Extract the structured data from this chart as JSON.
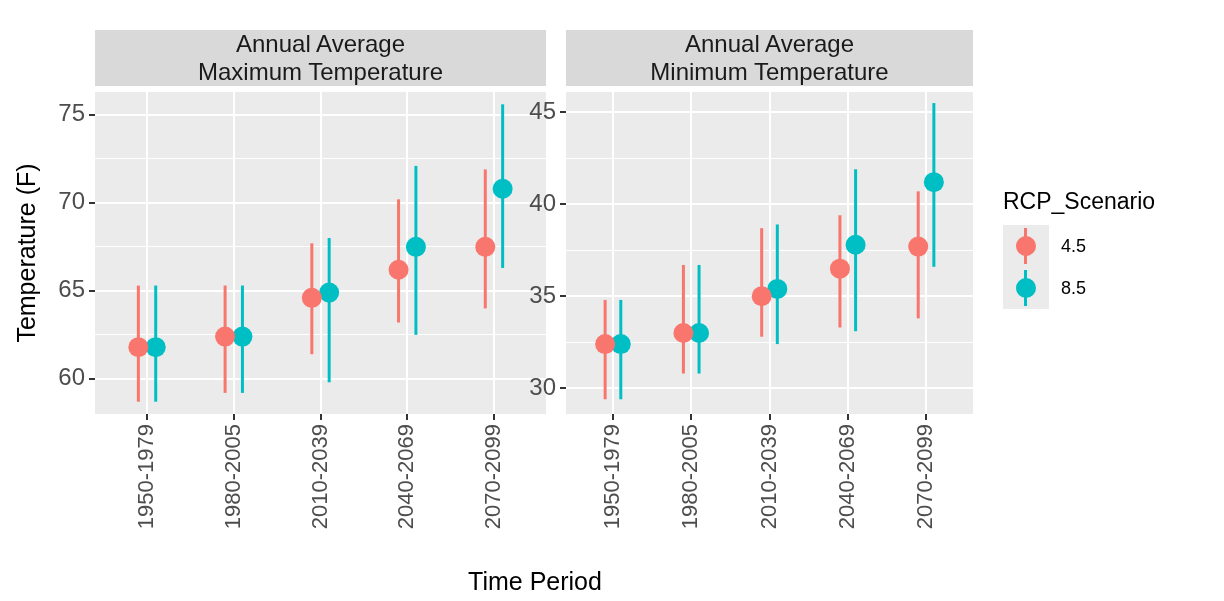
{
  "chart_data": [
    {
      "type": "scatter",
      "title": "Annual Average\nMaximum Temperature",
      "xlabel": "Time Period",
      "ylabel": "Temperature (F)",
      "categories": [
        "1950-1979",
        "1980-2005",
        "2010-2039",
        "2040-2069",
        "2070-2099"
      ],
      "ylim": [
        58,
        76.3
      ],
      "yticks": [
        {
          "value": 62.5,
          "label": null
        },
        {
          "value": 67.5,
          "label": null
        },
        {
          "value": 72.5,
          "label": null
        },
        60,
        65,
        70,
        75
      ],
      "grid": true,
      "marker": "circle",
      "legend": false,
      "series": [
        {
          "color": "#f8766d",
          "values": [
            61.8,
            62.4,
            64.6,
            66.2,
            67.5
          ],
          "errors": [
            [
              58.7,
              65.3
            ],
            [
              59.2,
              65.3
            ],
            [
              61.4,
              67.7
            ],
            [
              63.2,
              70.2
            ],
            [
              64.0,
              71.9
            ]
          ]
        },
        {
          "color": "#00bfc4",
          "values": [
            61.8,
            62.4,
            64.9,
            67.5,
            70.8
          ],
          "errors": [
            [
              58.7,
              65.3
            ],
            [
              59.2,
              65.3
            ],
            [
              59.8,
              68.0
            ],
            [
              62.5,
              72.1
            ],
            [
              66.3,
              75.6
            ]
          ]
        }
      ]
    },
    {
      "type": "scatter",
      "title": "Annual Average\nMinimum Temperature",
      "legend_title": "RCP_Scenario",
      "categories": [
        "1950-1979",
        "1980-2005",
        "2010-2039",
        "2040-2069",
        "2070-2099"
      ],
      "ylim": [
        28.6,
        46.1
      ],
      "yticks": [
        {
          "value": 32.5,
          "label": null
        },
        {
          "value": 37.5,
          "label": null
        },
        {
          "value": 42.5,
          "label": null
        },
        30,
        35,
        40,
        45
      ],
      "grid": true,
      "marker": "circle",
      "legend": "right",
      "series": [
        {
          "name": "4.5",
          "color": "#f8766d",
          "values": [
            32.4,
            33.0,
            35.0,
            36.5,
            37.7
          ],
          "errors": [
            [
              29.4,
              34.8
            ],
            [
              30.8,
              36.7
            ],
            [
              32.8,
              38.7
            ],
            [
              33.3,
              39.4
            ],
            [
              33.8,
              40.7
            ]
          ]
        },
        {
          "name": "8.5",
          "color": "#00bfc4",
          "values": [
            32.4,
            33.0,
            35.4,
            37.8,
            41.2
          ],
          "errors": [
            [
              29.4,
              34.8
            ],
            [
              30.8,
              36.7
            ],
            [
              32.4,
              38.9
            ],
            [
              33.1,
              41.9
            ],
            [
              36.6,
              45.5
            ]
          ]
        }
      ]
    }
  ]
}
